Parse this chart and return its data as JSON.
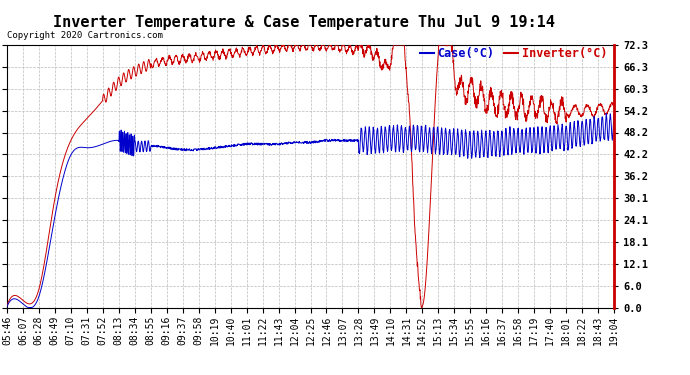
{
  "title": "Inverter Temperature & Case Temperature Thu Jul 9 19:14",
  "copyright": "Copyright 2020 Cartronics.com",
  "legend_case": "Case(°C)",
  "legend_inverter": "Inverter(°C)",
  "yticks": [
    0.0,
    6.0,
    12.1,
    18.1,
    24.1,
    30.1,
    36.2,
    42.2,
    48.2,
    54.2,
    60.3,
    66.3,
    72.3
  ],
  "ylim": [
    0.0,
    72.3
  ],
  "xtick_labels": [
    "05:46",
    "06:07",
    "06:28",
    "06:49",
    "07:10",
    "07:31",
    "07:52",
    "08:13",
    "08:34",
    "08:55",
    "09:16",
    "09:37",
    "09:58",
    "10:19",
    "10:40",
    "11:01",
    "11:22",
    "11:43",
    "12:04",
    "12:25",
    "12:46",
    "13:07",
    "13:28",
    "13:49",
    "14:10",
    "14:31",
    "14:52",
    "15:13",
    "15:34",
    "15:55",
    "16:16",
    "16:37",
    "16:58",
    "17:19",
    "17:40",
    "18:01",
    "18:22",
    "18:43",
    "19:04"
  ],
  "background_color": "#ffffff",
  "grid_color": "#bbbbbb",
  "case_color": "#0000cc",
  "inverter_color": "#cc0000",
  "right_border_color": "#cc0000",
  "title_fontsize": 11,
  "tick_fontsize": 7,
  "legend_fontsize": 8.5
}
